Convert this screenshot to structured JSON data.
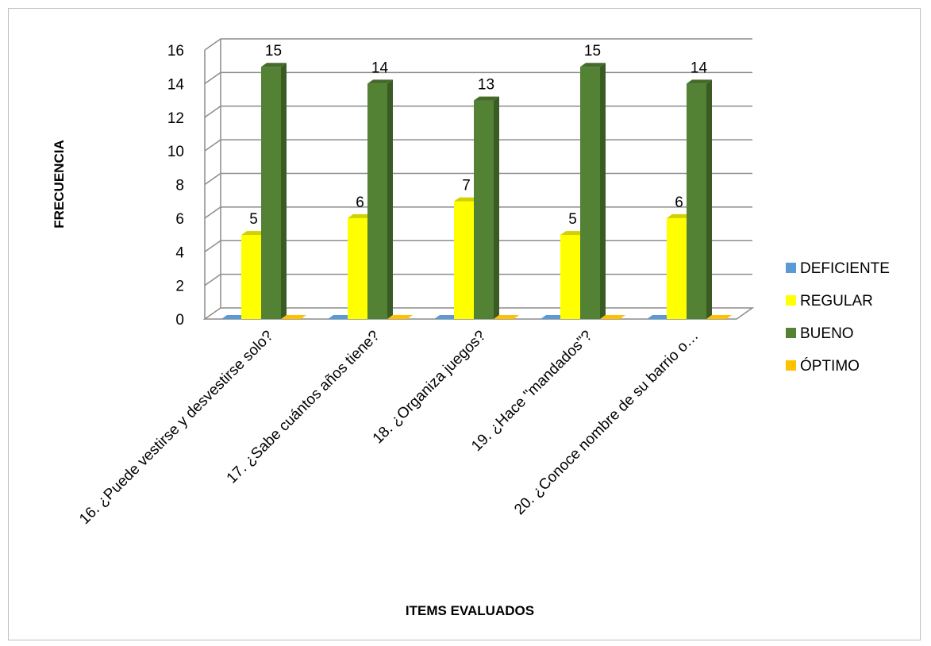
{
  "chart_data": {
    "type": "bar",
    "categories": [
      "16. ¿Puede vestirse y desvestirse solo?",
      "17. ¿Sabe cuántos años tiene?",
      "18. ¿Organiza juegos?",
      "19. ¿Hace  \"mandados\"?",
      "20. ¿Conoce  nombre  de su barrio  o…"
    ],
    "series": [
      {
        "name": "DEFICIENTE",
        "values": [
          0,
          0,
          0,
          0,
          0
        ],
        "color": "#5b9bd5"
      },
      {
        "name": "REGULAR",
        "values": [
          5,
          6,
          7,
          5,
          6
        ],
        "color": "#ffff00"
      },
      {
        "name": "BUENO",
        "values": [
          15,
          14,
          13,
          15,
          14
        ],
        "color": "#548235"
      },
      {
        "name": "ÓPTIMO",
        "values": [
          0,
          0,
          0,
          0,
          0
        ],
        "color": "#ffc000"
      }
    ],
    "xlabel": "ITEMS EVALUADOS",
    "ylabel": "FRECUENCIA",
    "ylim": [
      0,
      16
    ],
    "yticks": [
      "0",
      "2",
      "4",
      "6",
      "8",
      "10",
      "12",
      "14",
      "16"
    ],
    "grid": true,
    "legend_position": "right",
    "style": "3d-clustered-column"
  }
}
